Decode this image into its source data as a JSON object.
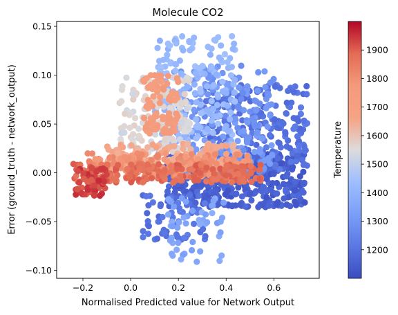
{
  "chart_data": {
    "type": "scatter",
    "title": "Molecule CO2",
    "xlabel": "Normalised Predicted value for Network Output",
    "ylabel": "Error (ground_truth - network_output)",
    "xlim": [
      -0.31,
      0.79
    ],
    "ylim": [
      -0.108,
      0.155
    ],
    "xticks": [
      -0.2,
      0.0,
      0.2,
      0.4,
      0.6
    ],
    "xtick_labels": [
      "−0.2",
      "0.0",
      "0.2",
      "0.4",
      "0.6"
    ],
    "yticks": [
      -0.1,
      -0.05,
      0.0,
      0.05,
      0.1,
      0.15
    ],
    "ytick_labels": [
      "−0.10",
      "−0.05",
      "0.00",
      "0.05",
      "0.10",
      "0.15"
    ],
    "grid": false,
    "colormap": "coolwarm",
    "colorbar": {
      "label": "Temperature",
      "min": 1100,
      "max": 2000,
      "ticks": [
        1200,
        1300,
        1400,
        1500,
        1600,
        1700,
        1800,
        1900
      ],
      "tick_labels": [
        "1200",
        "1300",
        "1400",
        "1500",
        "1600",
        "1700",
        "1800",
        "1900"
      ]
    },
    "point_groups": [
      {
        "temperature": 1150,
        "x_range": [
          0.15,
          0.73
        ],
        "y_range": [
          -0.035,
          0.02
        ],
        "count": 420
      },
      {
        "temperature": 1200,
        "x_range": [
          0.3,
          0.74
        ],
        "y_range": [
          0.0,
          0.09
        ],
        "count": 260
      },
      {
        "temperature": 1200,
        "x_range": [
          0.05,
          0.32
        ],
        "y_range": [
          -0.07,
          -0.02
        ],
        "count": 60
      },
      {
        "temperature": 1300,
        "x_range": [
          0.18,
          0.6
        ],
        "y_range": [
          0.0,
          0.11
        ],
        "count": 220
      },
      {
        "temperature": 1350,
        "x_range": [
          0.15,
          0.4
        ],
        "y_range": [
          -0.095,
          -0.02
        ],
        "count": 50
      },
      {
        "temperature": 1420,
        "x_range": [
          0.1,
          0.45
        ],
        "y_range": [
          0.02,
          0.14
        ],
        "count": 200
      },
      {
        "temperature": 1550,
        "x_range": [
          -0.05,
          0.25
        ],
        "y_range": [
          0.02,
          0.1
        ],
        "count": 170
      },
      {
        "temperature": 1650,
        "x_range": [
          -0.12,
          0.45
        ],
        "y_range": [
          0.0,
          0.03
        ],
        "count": 190
      },
      {
        "temperature": 1750,
        "x_range": [
          0.05,
          0.2
        ],
        "y_range": [
          0.04,
          0.1
        ],
        "count": 90
      },
      {
        "temperature": 1800,
        "x_range": [
          -0.18,
          0.5
        ],
        "y_range": [
          -0.005,
          0.02
        ],
        "count": 170
      },
      {
        "temperature": 1880,
        "x_range": [
          -0.24,
          0.55
        ],
        "y_range": [
          -0.01,
          0.01
        ],
        "count": 190
      },
      {
        "temperature": 1930,
        "x_range": [
          -0.23,
          -0.1
        ],
        "y_range": [
          -0.025,
          0.005
        ],
        "count": 60
      }
    ]
  }
}
